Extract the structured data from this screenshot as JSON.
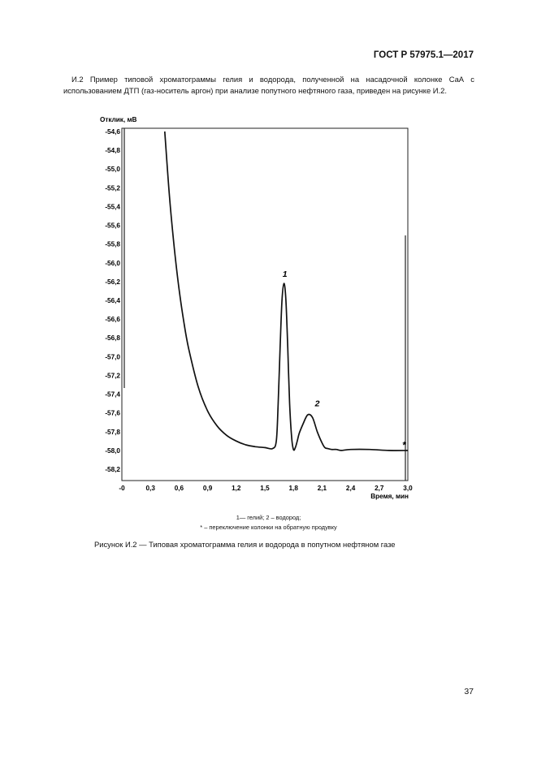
{
  "header": {
    "standard": "ГОСТ Р 57975.1—2017"
  },
  "intro": "И.2 Пример типовой хроматограммы гелия и водорода, полученной на насадочной колонке СаА с использованием ДТП (газ-носитель аргон) при анализе попутного нефтяного газа, приведен на рисунке И.2.",
  "chart_data": {
    "type": "line",
    "ylabel": "Отклик, мВ",
    "xlabel": "Время, мин",
    "xlim": [
      0,
      3.0
    ],
    "ylim": [
      -58.2,
      -54.6
    ],
    "y_inverted": true,
    "x_ticks": [
      "-0",
      "0,3",
      "0,6",
      "0,9",
      "1,2",
      "1,5",
      "1,8",
      "2,1",
      "2,4",
      "2,7",
      "3,0"
    ],
    "x_tick_values": [
      0,
      0.3,
      0.6,
      0.9,
      1.2,
      1.5,
      1.8,
      2.1,
      2.4,
      2.7,
      3.0
    ],
    "y_ticks": [
      "-54,6",
      "-54,8",
      "-55,0",
      "-55,2",
      "-55,4",
      "-55,6",
      "-55,8",
      "-56,0",
      "-56,2",
      "-56,4",
      "-56,6",
      "-56,8",
      "-57,0",
      "-57,2",
      "-57,4",
      "-57,6",
      "-57,8",
      "-58,0",
      "-58,2"
    ],
    "y_tick_values": [
      -54.6,
      -54.8,
      -55.0,
      -55.2,
      -55.4,
      -55.6,
      -55.8,
      -56.0,
      -56.2,
      -56.4,
      -56.6,
      -56.8,
      -57.0,
      -57.2,
      -57.4,
      -57.6,
      -57.8,
      -58.0,
      -58.2
    ],
    "series": [
      {
        "x": [
          0.45,
          0.5,
          0.55,
          0.6,
          0.65,
          0.7,
          0.8,
          0.9,
          1.0,
          1.1,
          1.2,
          1.3,
          1.4,
          1.5,
          1.58,
          1.62,
          1.64,
          1.66,
          1.68,
          1.7,
          1.72,
          1.74,
          1.76,
          1.78,
          1.8,
          1.82,
          1.84,
          1.86,
          1.9,
          1.95,
          2.0,
          2.05,
          2.1,
          2.13,
          2.16,
          2.2,
          2.25,
          2.3,
          2.4,
          2.6,
          2.8,
          3.0
        ],
        "y": [
          -54.6,
          -55.3,
          -55.84,
          -56.28,
          -56.63,
          -56.91,
          -57.32,
          -57.58,
          -57.74,
          -57.84,
          -57.9,
          -57.94,
          -57.96,
          -57.97,
          -57.98,
          -57.9,
          -57.5,
          -56.9,
          -56.4,
          -56.22,
          -56.38,
          -56.9,
          -57.5,
          -57.85,
          -57.99,
          -57.97,
          -57.9,
          -57.82,
          -57.72,
          -57.62,
          -57.65,
          -57.8,
          -57.92,
          -57.97,
          -57.98,
          -57.99,
          -57.99,
          -58.0,
          -57.99,
          -57.99,
          -58.0,
          -58.0
        ],
        "color": "#111111"
      }
    ],
    "annotations": [
      {
        "text": "1",
        "x": 1.71,
        "y": -56.15
      },
      {
        "text": "2",
        "x": 2.05,
        "y": -57.53
      },
      {
        "text": "*",
        "x": 2.96,
        "y": -57.98
      }
    ]
  },
  "legend": {
    "line1": "1— гелий; 2 – водород;",
    "line2": "* – переключение колонки на обратную продувку"
  },
  "caption": "Рисунок И.2 — Типовая хроматограмма гелия и водорода в попутном нефтяном газе",
  "page_number": "37"
}
